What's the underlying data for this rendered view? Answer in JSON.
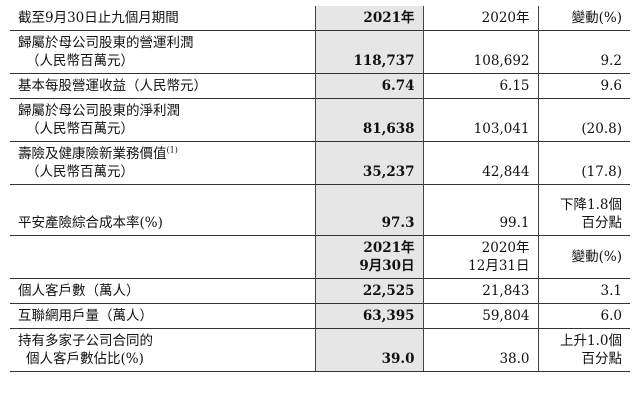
{
  "header": {
    "label": "截至9月30日止九個月期間",
    "col_a": "2021年",
    "col_b": "2020年",
    "col_c": "變動(%)"
  },
  "rows": [
    {
      "label_1": "歸屬於母公司股東的營運利潤",
      "label_2": "（人民幣百萬元）",
      "a": "118,737",
      "b": "108,692",
      "c": "9.2"
    },
    {
      "label_1": "基本每股營運收益（人民幣元）",
      "a": "6.74",
      "b": "6.15",
      "c": "9.6"
    },
    {
      "label_1": "歸屬於母公司股東的淨利潤",
      "label_2": "（人民幣百萬元）",
      "a": "81,638",
      "b": "103,041",
      "c": "(20.8)"
    },
    {
      "label_1": "壽險及健康險新業務價值",
      "sup": "(1)",
      "label_2": "（人民幣百萬元）",
      "a": "35,237",
      "b": "42,844",
      "c": "(17.8)"
    },
    {
      "label_1": "平安產險綜合成本率(%)",
      "a": "97.3",
      "b": "99.1",
      "c_1": "下降1.8個",
      "c_2": "百分點"
    }
  ],
  "header2": {
    "a_1": "2021年",
    "a_2": "9月30日",
    "b_1": "2020年",
    "b_2": "12月31日",
    "c": "變動(%)"
  },
  "rows2": [
    {
      "label_1": "個人客戶數（萬人）",
      "a": "22,525",
      "b": "21,843",
      "c": "3.1"
    },
    {
      "label_1": "互聯網用戶量（萬人）",
      "a": "63,395",
      "b": "59,804",
      "c": "6.0"
    },
    {
      "label_1": "持有多家子公司合同的",
      "label_2": "個人客戶數佔比(%)",
      "a": "39.0",
      "b": "38.0",
      "c_1": "上升1.0個",
      "c_2": "百分點"
    }
  ]
}
